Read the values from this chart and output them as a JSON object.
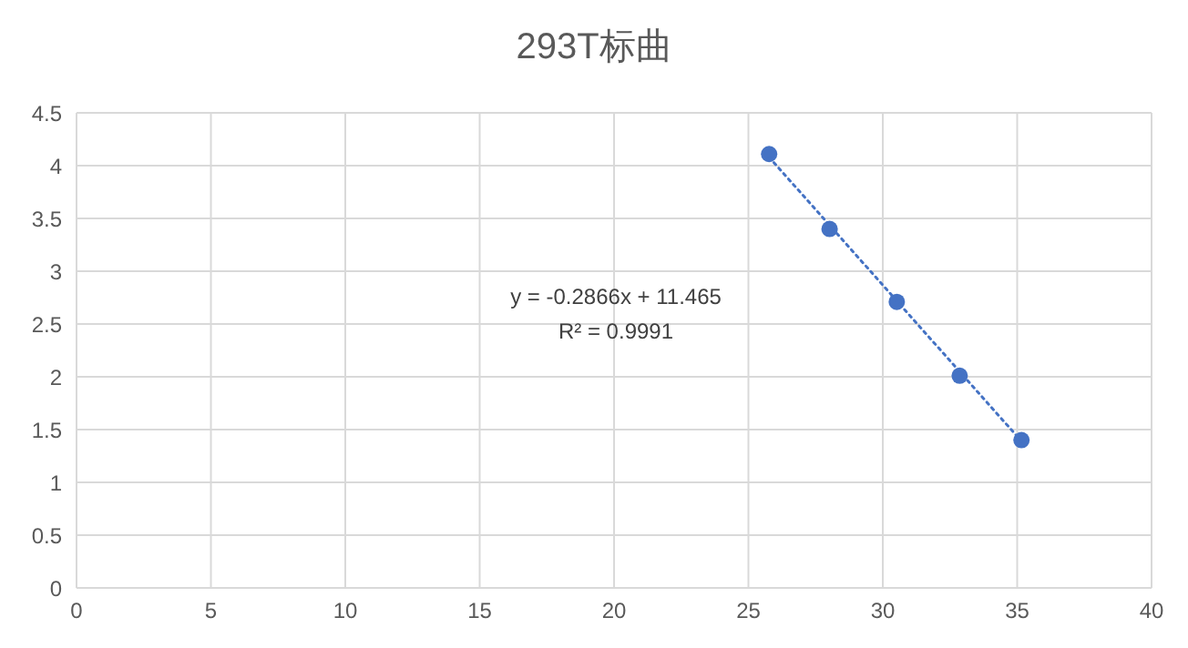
{
  "chart_data": {
    "type": "scatter",
    "title": "293T标曲",
    "xlim": [
      0,
      40
    ],
    "xticks": [
      0,
      5,
      10,
      15,
      20,
      25,
      30,
      35,
      40
    ],
    "ylim": [
      0,
      4.5
    ],
    "yticks": [
      0,
      0.5,
      1,
      1.5,
      2,
      2.5,
      3,
      3.5,
      4,
      4.5
    ],
    "grid": true,
    "series": [
      {
        "color": "#4472c4",
        "marker": "circle",
        "x": [
          25.77,
          28.02,
          30.52,
          32.86,
          35.16
        ],
        "values": [
          4.11,
          3.4,
          2.71,
          2.01,
          1.4
        ]
      },
      {
        "type": "line",
        "color": "#4472c4",
        "marker": "none",
        "line_style": "dotted",
        "x": [
          25.77,
          35.16
        ],
        "values": [
          4.08,
          1.39
        ]
      }
    ],
    "annotations": [
      "y = -0.2866x + 11.465",
      "R² = 0.9991"
    ]
  }
}
